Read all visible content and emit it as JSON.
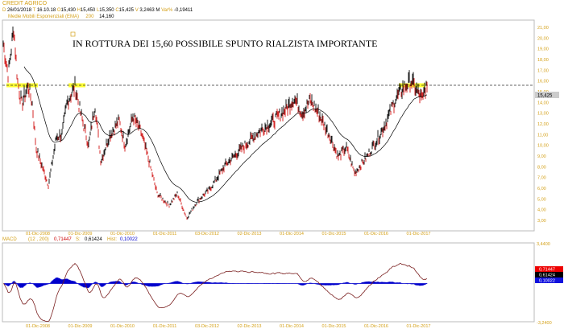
{
  "header": {
    "title": "CREDIT AGRICO",
    "d_label": "D",
    "date": "26/01/2018",
    "t_label": "T",
    "time": "16.10.18",
    "o_label": "O",
    "open": "15,430",
    "h_label": "H",
    "high": "15,450",
    "l_label": "L",
    "low": "15,350",
    "c_label": "C",
    "close": "15,425",
    "v_label": "V",
    "volume": "3,2463 M",
    "var_label": "Var%",
    "var": "-0,19411"
  },
  "ema_legend": {
    "label": "Medie Mobili Esponenziali (EMA)",
    "period": "200",
    "value": "14,160"
  },
  "macd_legend": {
    "label": "MACD",
    "params": "(12 , 200)",
    "macd": "0,71447",
    "s_label": "S:",
    "signal": "0,61424",
    "h_label": "Hist:",
    "hist": "0,10022"
  },
  "colors": {
    "up": "#000000",
    "down": "#d01010",
    "ema": "#000000",
    "macd": "#7a1f1f",
    "hist": "#0000cc",
    "highlight": "#ffff33",
    "axis": "#d4a017"
  },
  "chart_data": [
    {
      "type": "line",
      "title": "CREDIT AGRICO",
      "annotation": "IN ROTTURA DEI 15,60 POSSIBILE SPUNTO RIALZISTA IMPORTANTE",
      "resistance": 15.6,
      "last_price_label": "15,425",
      "last_price": 15.425,
      "ylim": [
        3,
        21
      ],
      "yticks": [
        "21,00",
        "20,00",
        "19,00",
        "18,00",
        "17,00",
        "16,00",
        "15,00",
        "14,00",
        "13,00",
        "12,00",
        "11,00",
        "10,00",
        "9,00",
        "8,00",
        "7,00",
        "6,00",
        "5,00",
        "4,00",
        "3,00"
      ],
      "xticks": [
        "01-Dic-2008",
        "01-Dic-2009",
        "01-Dic-2010",
        "01-Dic-2011",
        "03-Dic-2012",
        "02-Dic-2013",
        "01-Dic-2014",
        "01-Dic-2015",
        "01-Dic-2016",
        "01-Dic-2017"
      ],
      "series": [
        {
          "name": "price",
          "t": [
            2008.08,
            2008.22,
            2008.35,
            2008.44,
            2008.54,
            2008.69,
            2008.79,
            2008.88,
            2008.98,
            2009.17,
            2009.36,
            2009.49,
            2009.61,
            2009.8,
            2009.93,
            2010.12,
            2010.27,
            2010.41,
            2010.6,
            2010.84,
            2010.98,
            2011.17,
            2011.36,
            2011.55,
            2011.74,
            2012.02,
            2012.22,
            2012.44,
            2012.69,
            2012.98,
            2013.36,
            2013.74,
            2014.12,
            2014.5,
            2014.79,
            2014.98,
            2015.17,
            2015.36,
            2015.55,
            2015.83,
            2016.02,
            2016.21,
            2016.41,
            2016.69,
            2016.98,
            2017.17,
            2017.36,
            2017.55,
            2017.74,
            2017.89,
            2018.02,
            2018.07
          ],
          "values": [
            20,
            16.6,
            21,
            16,
            13.8,
            15.6,
            13.8,
            9.7,
            8.5,
            6.3,
            10.8,
            11,
            14,
            15.5,
            13,
            10,
            13.8,
            8.5,
            10.8,
            12.3,
            10,
            12.7,
            11.2,
            8.5,
            5.5,
            4.4,
            5.5,
            3.2,
            4.8,
            5.9,
            8.2,
            9.7,
            11.2,
            12.3,
            13.4,
            14.4,
            13,
            14.2,
            13,
            10.8,
            8.9,
            9.8,
            7.4,
            8.9,
            10.8,
            12.3,
            14.2,
            15.3,
            16,
            15,
            14.2,
            15.425
          ]
        },
        {
          "name": "EMA 200",
          "last": 14.16
        }
      ]
    },
    {
      "type": "line",
      "title": "MACD (12 , 200)",
      "ylim": [
        -3.24,
        3.44
      ],
      "yticks": [
        "3,4400",
        "-3,2400"
      ],
      "xticks": [
        "01-Dic-2008",
        "01-Dic-2009",
        "01-Dic-2010",
        "01-Dic-2011",
        "03-Dic-2012",
        "02-Dic-2013",
        "01-Dic-2014",
        "01-Dic-2015",
        "01-Dic-2016",
        "01-Dic-2017"
      ],
      "last": {
        "macd": "0,71447",
        "signal": "0,61424",
        "hist": "0,10022"
      }
    }
  ]
}
